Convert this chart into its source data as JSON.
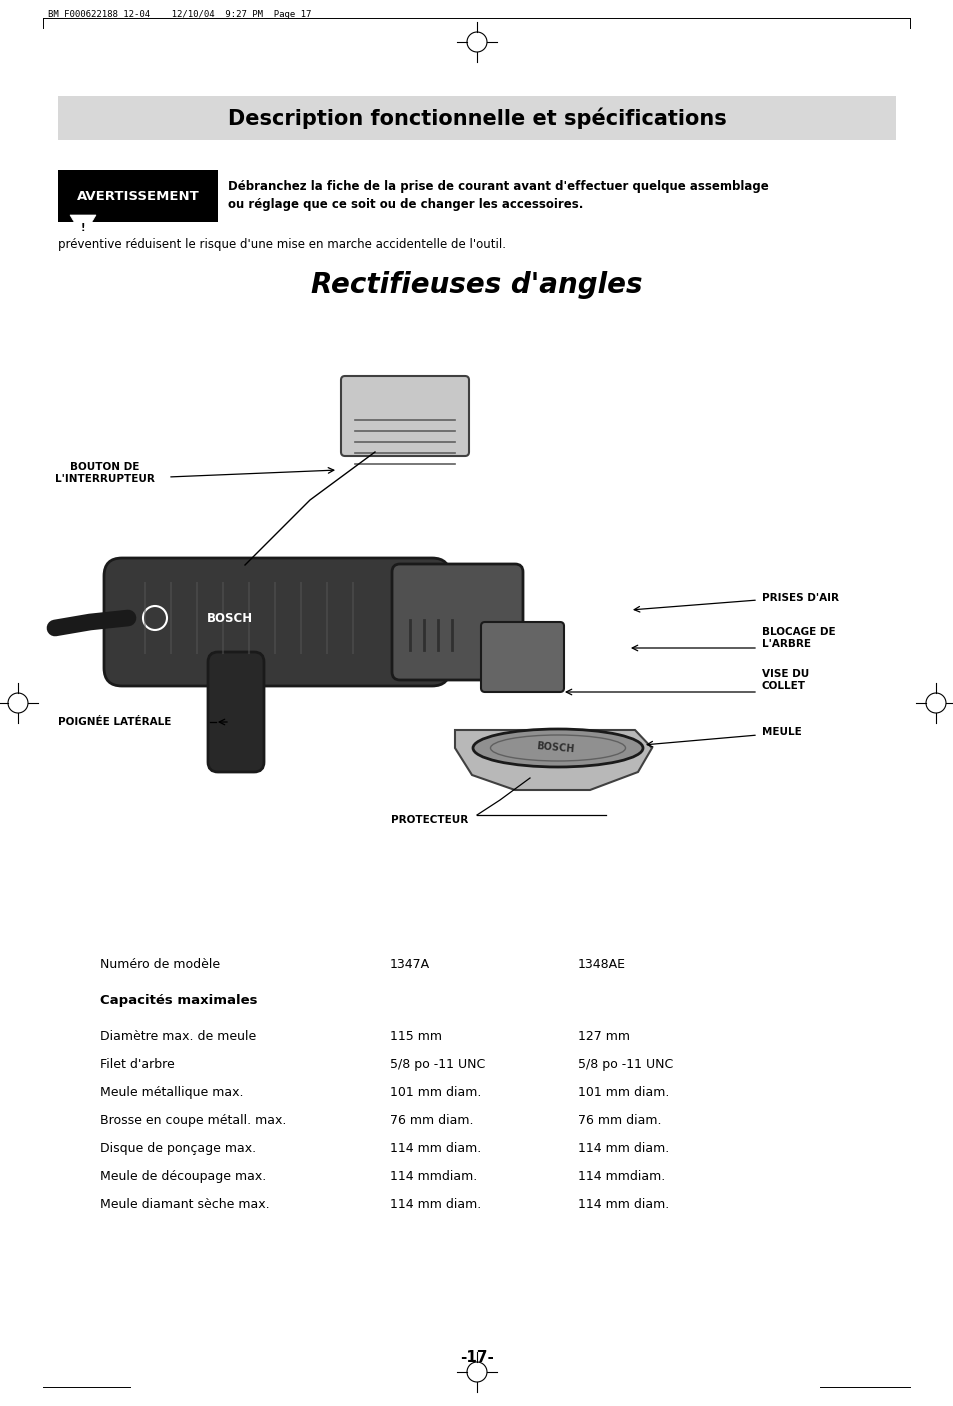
{
  "page_header": "BM F000622188 12-04    12/10/04  9:27 PM  Page 17",
  "section_title": "Description fonctionnelle et spécifications",
  "gray_bg": "#d8d8d8",
  "warning_label": "AVERTISSEMENT",
  "warning_bold_text": "Débranchez la fiche de la prise de courant avant d'effectuer quelque assemblage\nou réglage que ce soit ou de changer les accessoires.",
  "warning_cont": "préventive réduisent le risque d'une mise en marche accidentelle de l'outil.",
  "grinder_title": "Rectifieuses d'angles",
  "label_bouton": "BOUTON DE\nL'INTERRUPTEUR",
  "label_prises": "PRISES D'AIR",
  "label_blocage": "BLOCAGE DE\nL'ARBRE",
  "label_vise": "VISE DU\nCOLLET",
  "label_meule": "MEULE",
  "label_poignee": "POIGNÉE LATÉRALE",
  "label_protecteur": "PROTECTEUR",
  "table_header_col1": "Numéro de modèle",
  "table_header_col2": "1347A",
  "table_header_col3": "1348AE",
  "table_bold_row": "Capacités maximales",
  "table_rows": [
    [
      "Diamètre max. de meule",
      "115 mm",
      "127 mm"
    ],
    [
      "Filet d'arbre",
      "5/8 po -11 UNC",
      "5/8 po -11 UNC"
    ],
    [
      "Meule métallique max.",
      "101 mm diam.",
      "101 mm diam."
    ],
    [
      "Brosse en coupe métall. max.",
      "76 mm diam.",
      "76 mm diam."
    ],
    [
      "Disque de ponçage max.",
      "114 mm diam.",
      "114 mm diam."
    ],
    [
      "Meule de découpage max.",
      "114 mmdiam.",
      "114 mmdiam."
    ],
    [
      "Meule diamant sèche max.",
      "114 mm diam.",
      "114 mm diam."
    ]
  ],
  "page_number": "-17-",
  "bg_color": "#ffffff"
}
